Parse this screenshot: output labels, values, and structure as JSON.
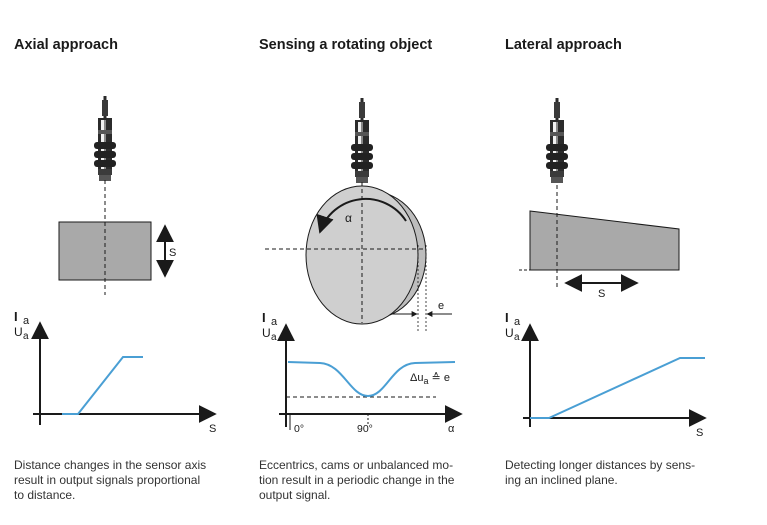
{
  "panels": [
    {
      "title": "Axial approach",
      "axis_top": [
        "I",
        "a",
        "U",
        "a"
      ],
      "axis_x": "S",
      "distance_label": "S",
      "caption_lines": [
        "Distance changes in the sensor axis",
        "result in output signals proportional",
        "to distance."
      ]
    },
    {
      "title": "Sensing a rotating object",
      "axis_top": [
        "I",
        "a",
        "U",
        "a"
      ],
      "rotation_label": "α",
      "eccentricity_label": "e",
      "delta_label": "Δu",
      "delta_sub": "a",
      "delta_rest": " ≙ e",
      "ticks": [
        "0°",
        "90°"
      ],
      "axis_x": "α",
      "caption_lines": [
        "Eccentrics, cams or unbalanced mo-",
        "tion result in a periodic change in the",
        "output signal."
      ]
    },
    {
      "title": "Lateral approach",
      "axis_top": [
        "I",
        "a",
        "U",
        "a"
      ],
      "axis_x": "S",
      "distance_label": "S",
      "caption_lines": [
        "Detecting longer distances by sens-",
        "ing an inclined plane."
      ]
    }
  ],
  "colors": {
    "curve": "#4a9fd4",
    "target_fill": "#a9a9a9",
    "disc_fill": "#cfcfcf",
    "line": "#1a1a1a"
  }
}
